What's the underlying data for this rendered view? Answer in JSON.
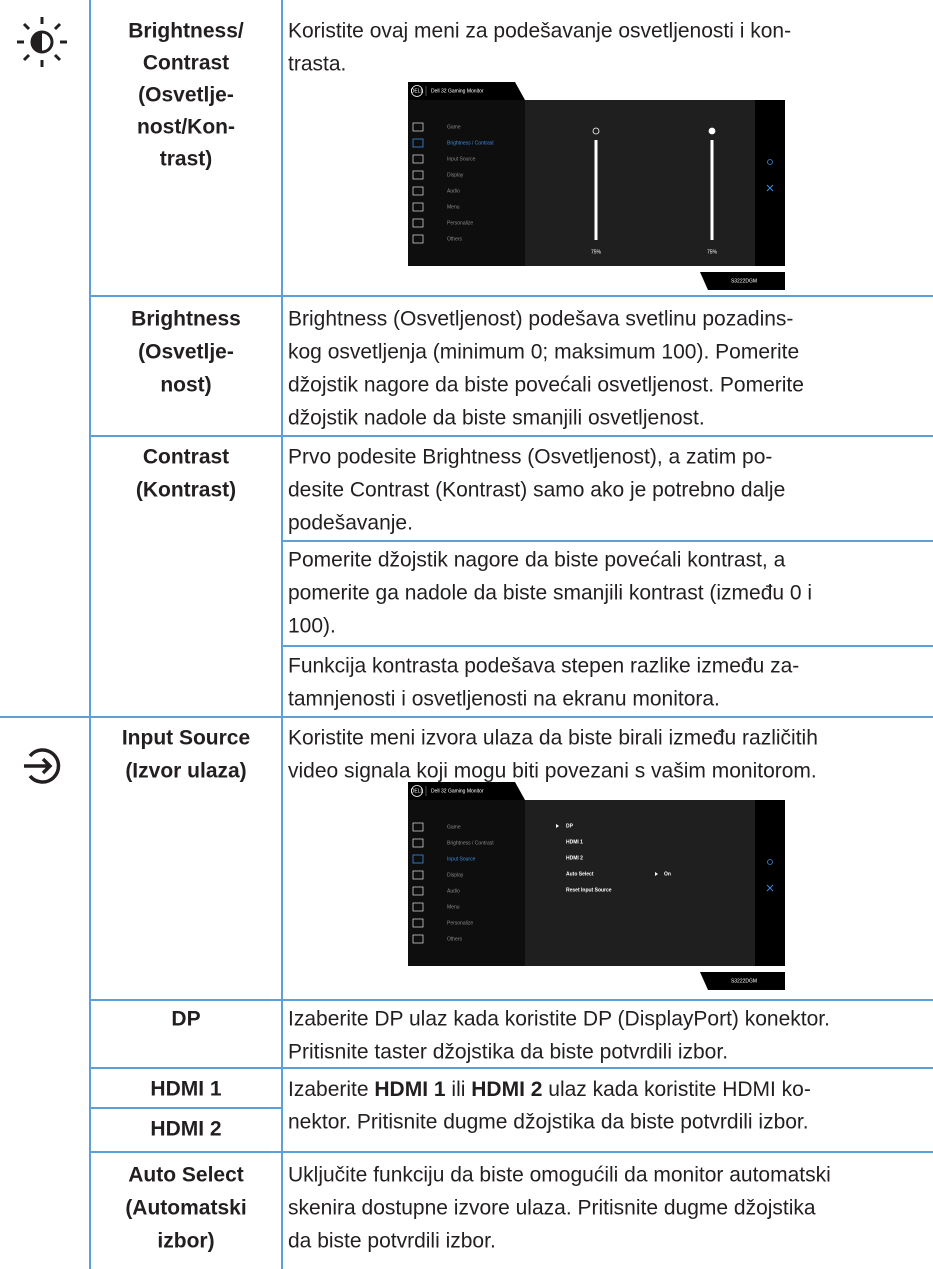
{
  "rows": [
    {
      "name": [
        "Brightness/",
        "Contrast",
        "(Osvetlje-",
        "nost/Kon-",
        "trast)"
      ],
      "desc": [
        [
          "Koristite ovaj meni za podešavanje osvetljenosti i kon-",
          "trasta."
        ]
      ]
    },
    {
      "name": [
        "Brightness",
        "(Osvetlje-",
        "nost)"
      ],
      "desc": [
        [
          "Brightness (Osvetljenost) podešava svetlinu pozadins-",
          "kog osvetljenja (minimum 0; maksimum 100). Pomerite",
          "džojstik nagore da biste povećali osvetljenost. Pomerite",
          "džojstik nadole da biste smanjili osvetljenost."
        ]
      ]
    },
    {
      "name": [
        "Contrast",
        "(Kontrast)"
      ],
      "desc": [
        [
          "Prvo podesite Brightness (Osvetljenost), a zatim po-",
          "desite Contrast (Kontrast) samo ako je potrebno dalje",
          "podešavanje."
        ],
        [
          "Pomerite džojstik nagore da biste povećali kontrast, a",
          "pomerite ga nadole da biste smanjili kontrast (između 0 i",
          "100)."
        ],
        [
          "Funkcija kontrasta podešava stepen razlike između za-",
          "tamnjenosti i osvetljenosti na ekranu monitora."
        ]
      ]
    },
    {
      "name": [
        "Input Source",
        "(Izvor ulaza)"
      ],
      "desc": [
        [
          "Koristite meni izvora ulaza da biste birali između različitih",
          "video signala koji mogu biti povezani s vašim monitorom."
        ]
      ]
    },
    {
      "name": [
        "DP"
      ],
      "desc": [
        [
          "Izaberite DP ulaz kada koristite DP (DisplayPort) konektor.",
          "Pritisnite taster džojstika da biste potvrdili izbor."
        ]
      ]
    },
    {
      "name": [
        "HDMI 1",
        "HDMI 2"
      ],
      "desc": [
        [
          [
            "Izaberite ",
            "HDMI 1",
            " ili ",
            "HDMI 2",
            " ulaz kada koristite HDMI ko-"
          ],
          "nektor. Pritisnite dugme džojstika da biste potvrdili izbor."
        ]
      ]
    },
    {
      "name": [
        "Auto Select",
        "(Automatski",
        "izbor)"
      ],
      "desc": [
        [
          "Uključite funkciju da biste omogućili da monitor automatski",
          "skenira dostupne izvore ulaza. Pritisnite dugme džojstika",
          "da biste potvrdili izbor."
        ]
      ]
    }
  ],
  "osd_brightness": {
    "logo": "DELL",
    "header": "Dell 32 Gaming Monitor",
    "menu": [
      "Game",
      "Brightness / Contrast",
      "Input Source",
      "Display",
      "Audio",
      "Menu",
      "Personalize",
      "Others"
    ],
    "levels": [
      "75%",
      "75%"
    ],
    "model": "S3222DGM"
  },
  "osd_input": {
    "logo": "DELL",
    "header": "Dell 32 Gaming Monitor",
    "menu": [
      "Game",
      "Brightness / Contrast",
      "Input Source",
      "Display",
      "Audio",
      "Menu",
      "Personalize",
      "Others"
    ],
    "options": [
      "DP",
      "HDMI 1",
      "HDMI 2",
      "Auto Select",
      "Reset Input Source"
    ],
    "auto_select_value": "On",
    "model": "S3222DGM"
  }
}
